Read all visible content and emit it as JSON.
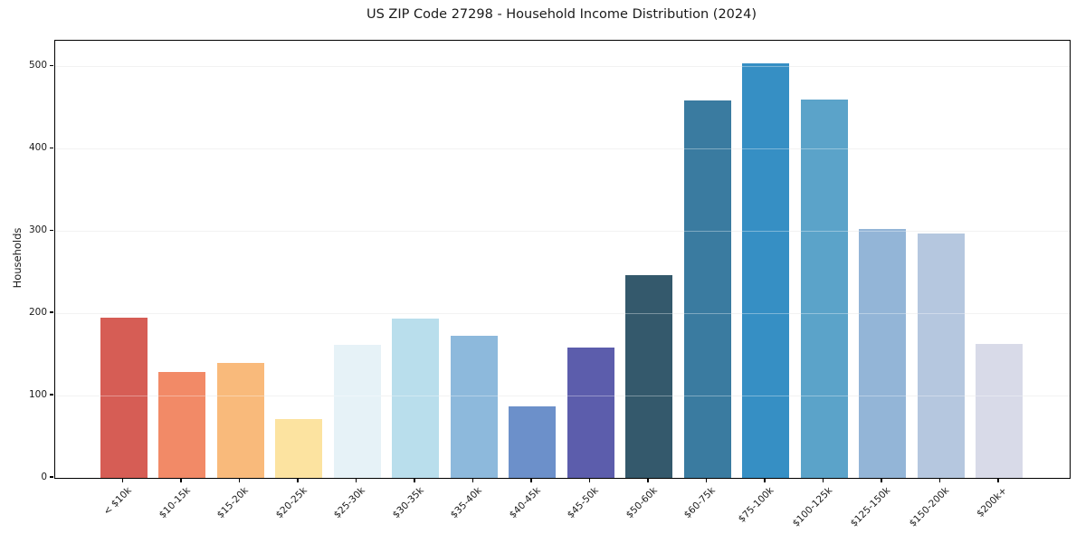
{
  "figure": {
    "background": "#ffffff",
    "spine_color": "#000000",
    "gridline_color": "#ececec",
    "text_color": "#1a1a1a"
  },
  "chart_data": {
    "type": "bar",
    "title": "US ZIP Code 27298 - Household Income Distribution (2024)",
    "xlabel": "",
    "ylabel": "Households",
    "categories": [
      "< $10k",
      "$10-15k",
      "$15-20k",
      "$20-25k",
      "$25-30k",
      "$30-35k",
      "$35-40k",
      "$40-45k",
      "$45-50k",
      "$50-60k",
      "$60-75k",
      "$75-100k",
      "$100-125k",
      "$125-150k",
      "$150-200k",
      "$200k+"
    ],
    "values": [
      195,
      129,
      140,
      72,
      162,
      194,
      173,
      87,
      158,
      246,
      458,
      504,
      460,
      302,
      297,
      163
    ],
    "bar_colors": [
      "#d65d55",
      "#f28a67",
      "#f9ba7b",
      "#fce3a0",
      "#e6f2f7",
      "#b9deec",
      "#8db9dc",
      "#6c90ca",
      "#5c5dac",
      "#34596c",
      "#3a7ba0",
      "#368fc4",
      "#5ba3c9",
      "#93b5d7",
      "#b5c7df",
      "#d8dae8"
    ],
    "yticks": [
      0,
      100,
      200,
      300,
      400,
      500
    ],
    "ylim": [
      0,
      531
    ],
    "grid": "horizontal",
    "legend": "none"
  }
}
